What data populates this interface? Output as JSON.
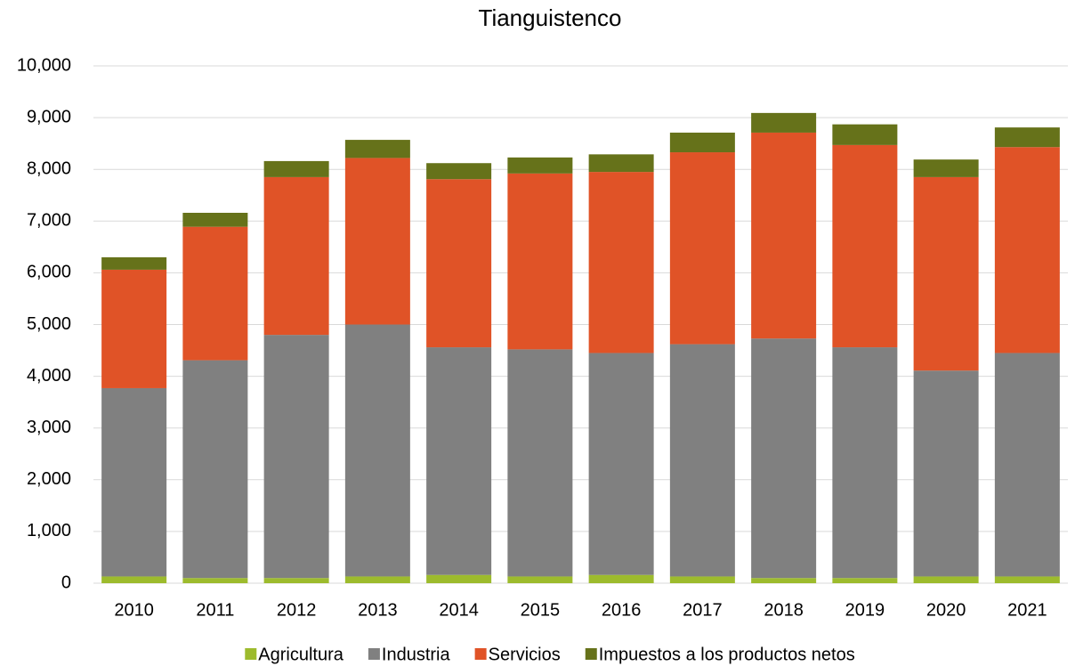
{
  "chart_data": {
    "type": "stacked_bar",
    "title": "Tianguistenco",
    "categories": [
      "2010",
      "2011",
      "2012",
      "2013",
      "2014",
      "2015",
      "2016",
      "2017",
      "2018",
      "2019",
      "2020",
      "2021"
    ],
    "series": [
      {
        "name": "Agricultura",
        "color": "#9dbb2d",
        "values": [
          130,
          100,
          100,
          130,
          160,
          130,
          160,
          130,
          100,
          100,
          130,
          130
        ]
      },
      {
        "name": "Industria",
        "color": "#808080",
        "values": [
          3640,
          4210,
          4700,
          4870,
          4400,
          4390,
          4290,
          4490,
          4630,
          4460,
          3980,
          4320
        ]
      },
      {
        "name": "Servicios",
        "color": "#e05327",
        "values": [
          2290,
          2580,
          3050,
          3220,
          3250,
          3400,
          3500,
          3710,
          3980,
          3910,
          3740,
          3980
        ]
      },
      {
        "name": "Impuestos a los productos netos",
        "color": "#66721a",
        "values": [
          240,
          270,
          310,
          350,
          310,
          310,
          340,
          380,
          380,
          400,
          340,
          380
        ]
      }
    ],
    "ylim": [
      0,
      10000
    ],
    "yticks": [
      0,
      {
        "value": 1000,
        "label": "1,000"
      },
      {
        "value": 2000,
        "label": "2,000"
      },
      {
        "value": 3000,
        "label": "3,000"
      },
      {
        "value": 4000,
        "label": "4,000"
      },
      {
        "value": 5000,
        "label": "5,000"
      },
      {
        "value": 6000,
        "label": "6,000"
      },
      {
        "value": 7000,
        "label": "7,000"
      },
      {
        "value": 8000,
        "label": "8,000"
      },
      {
        "value": 9000,
        "label": "9,000"
      },
      {
        "value": 10000,
        "label": "10,000"
      }
    ],
    "grid": true,
    "legend": "bottom"
  }
}
